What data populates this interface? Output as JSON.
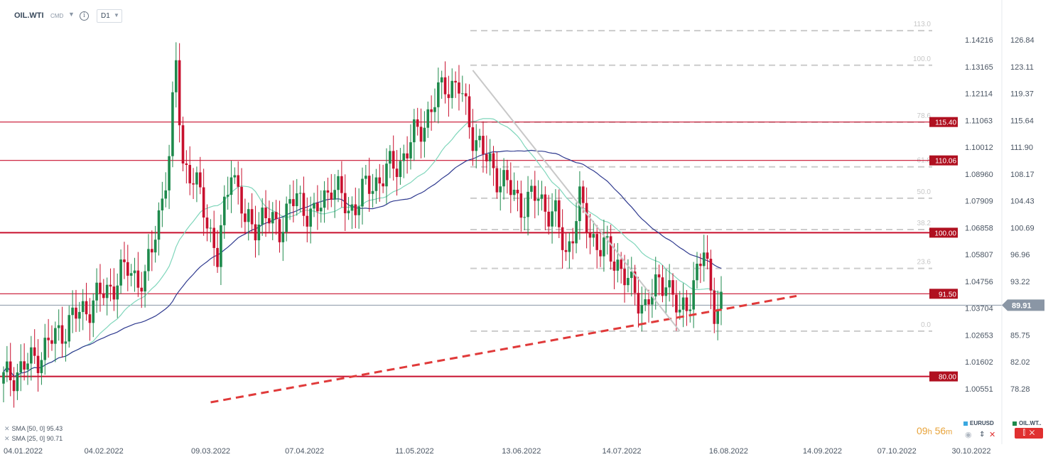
{
  "toolbar": {
    "symbol": "OIL.WTI",
    "market": "CMD",
    "timeframe": "D1"
  },
  "chart_data": {
    "type": "candlestick",
    "price_range": [
      76.4,
      129.0
    ],
    "time_range": [
      "2022-01-04",
      "2022-10-30"
    ],
    "grid": false,
    "price_ticks": [
      "126.84",
      "123.11",
      "119.37",
      "115.64",
      "111.90",
      "108.17",
      "104.43",
      "100.69",
      "96.96",
      "93.22",
      "89.91",
      "85.75",
      "82.02",
      "78.28"
    ],
    "eurusd_ticks": [
      "1.14216",
      "1.13165",
      "1.12114",
      "1.11063",
      "1.10012",
      "1.08960",
      "1.07909",
      "1.06858",
      "1.05807",
      "1.04756",
      "1.03704",
      "1.02653",
      "1.01602",
      "1.00551"
    ],
    "date_ticks": [
      "04.01.2022",
      "04.02.2022",
      "09.03.2022",
      "07.04.2022",
      "11.05.2022",
      "13.06.2022",
      "14.07.2022",
      "16.08.2022",
      "14.09.2022",
      "07.10.2022",
      "30.10.2022"
    ],
    "current_price": "89.91",
    "levels": [
      {
        "label": "115.40",
        "value": 115.4
      },
      {
        "label": "110.06",
        "value": 110.06
      },
      {
        "label": "100.00",
        "value": 100.0
      },
      {
        "label": "91.50",
        "value": 91.5
      },
      {
        "label": "80.00",
        "value": 80.0
      }
    ],
    "fibonacci": {
      "high": 123.3,
      "low": 86.3,
      "levels": [
        {
          "label": "113.0",
          "ratio": 1.13
        },
        {
          "label": "100.0",
          "ratio": 1.0
        },
        {
          "label": "78.6",
          "ratio": 0.786
        },
        {
          "label": "61.8",
          "ratio": 0.618
        },
        {
          "label": "50.0",
          "ratio": 0.5
        },
        {
          "label": "38.2",
          "ratio": 0.382
        },
        {
          "label": "23.6",
          "ratio": 0.236
        },
        {
          "label": "0.0",
          "ratio": 0.0
        }
      ]
    },
    "trendline": {
      "from": {
        "date": "2022-03-09",
        "price": 76.4
      },
      "to": {
        "date": "2022-09-06",
        "price": 91.2
      }
    },
    "legend": [
      {
        "label": "SMA [50, 0] 95.43",
        "color": "#2f3a8f"
      },
      {
        "label": "SMA [25, 0] 90.71",
        "color": "#7fd6bb"
      }
    ],
    "colors": {
      "up": "#1e8a4c",
      "down": "#c8102e",
      "level": "#c8102e",
      "current": "#8a96a5"
    }
  },
  "bottom": {
    "countdown_hours": "09",
    "countdown_h_unit": "h",
    "countdown_minutes": "56",
    "countdown_m_unit": "m",
    "instruments": [
      {
        "label": "EURUSD",
        "color": "#3aa8e0"
      },
      {
        "label": "OIL.WT..",
        "color": "#1e8a4c"
      }
    ],
    "hide_icon": "eye-icon",
    "reorder_icon": "up-down-icon",
    "remove_icon": "close-icon",
    "settings_icon": "sliders-icon"
  }
}
